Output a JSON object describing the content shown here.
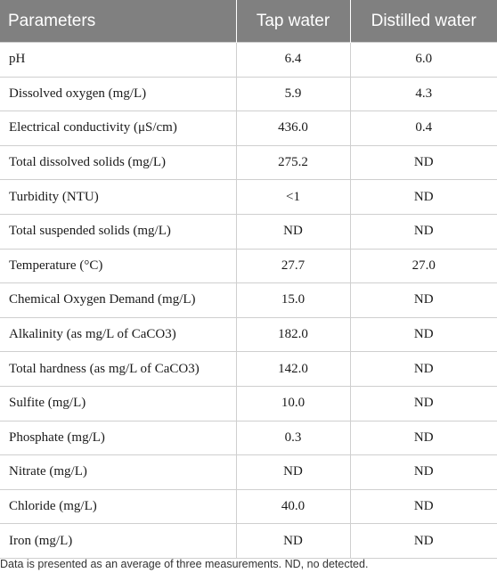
{
  "table": {
    "headers": [
      "Parameters",
      "Tap water",
      "Distilled water"
    ],
    "rows": [
      [
        "pH",
        "6.4",
        "6.0"
      ],
      [
        "Dissolved oxygen (mg/L)",
        "5.9",
        "4.3"
      ],
      [
        "Electrical conductivity (μS/cm)",
        "436.0",
        "0.4"
      ],
      [
        "Total dissolved solids (mg/L)",
        "275.2",
        "ND"
      ],
      [
        "Turbidity (NTU)",
        "<1",
        "ND"
      ],
      [
        "Total suspended solids (mg/L)",
        "ND",
        "ND"
      ],
      [
        "Temperature (°C)",
        "27.7",
        "27.0"
      ],
      [
        "Chemical Oxygen Demand (mg/L)",
        "15.0",
        "ND"
      ],
      [
        "Alkalinity (as mg/L of CaCO3)",
        "182.0",
        "ND"
      ],
      [
        "Total hardness (as mg/L of CaCO3)",
        "142.0",
        "ND"
      ],
      [
        "Sulfite (mg/L)",
        "10.0",
        "ND"
      ],
      [
        "Phosphate (mg/L)",
        "0.3",
        "ND"
      ],
      [
        "Nitrate (mg/L)",
        "ND",
        "ND"
      ],
      [
        "Chloride (mg/L)",
        "40.0",
        "ND"
      ],
      [
        "Iron (mg/L)",
        "ND",
        "ND"
      ]
    ]
  },
  "footnote": "Data is presented as an average of three measurements. ND, no detected."
}
